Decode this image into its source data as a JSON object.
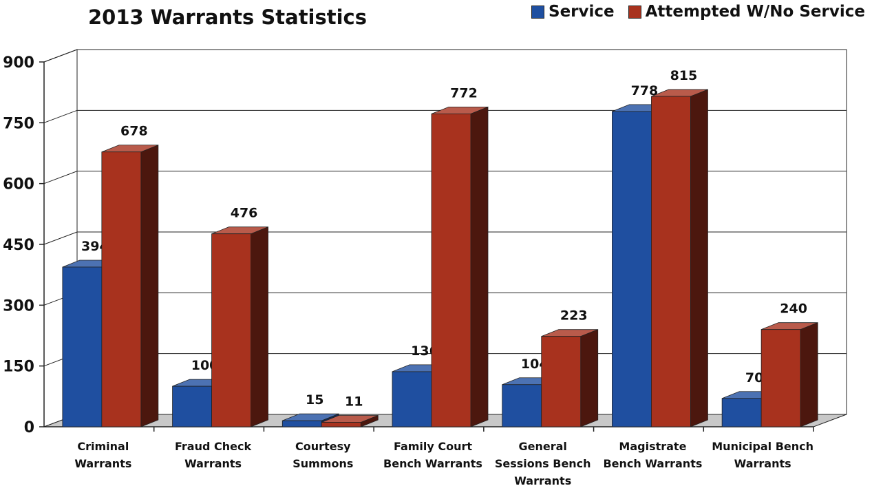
{
  "chart_data": {
    "type": "bar",
    "title": "2013 Warrants Statistics",
    "categories": [
      [
        "Criminal",
        "Warrants"
      ],
      [
        "Fraud Check",
        "Warrants"
      ],
      [
        "Courtesy",
        "Summons"
      ],
      [
        "Family Court",
        "Bench Warrants"
      ],
      [
        "General",
        "Sessions Bench",
        "Warrants"
      ],
      [
        "Magistrate",
        "Bench Warrants"
      ],
      [
        "Municipal Bench",
        "Warrants"
      ]
    ],
    "series": [
      {
        "name": "Service",
        "color": "#1f4fa0",
        "values": [
          394,
          100,
          15,
          136,
          104,
          778,
          70
        ]
      },
      {
        "name": "Attempted W/No Service",
        "color": "#a8321e",
        "values": [
          678,
          476,
          11,
          772,
          223,
          815,
          240
        ]
      }
    ],
    "ylim": [
      0,
      900
    ],
    "yticks": [
      0,
      150,
      300,
      450,
      600,
      750,
      900
    ],
    "grid": true,
    "legend": "top-right",
    "style": "3d-clustered-column"
  }
}
